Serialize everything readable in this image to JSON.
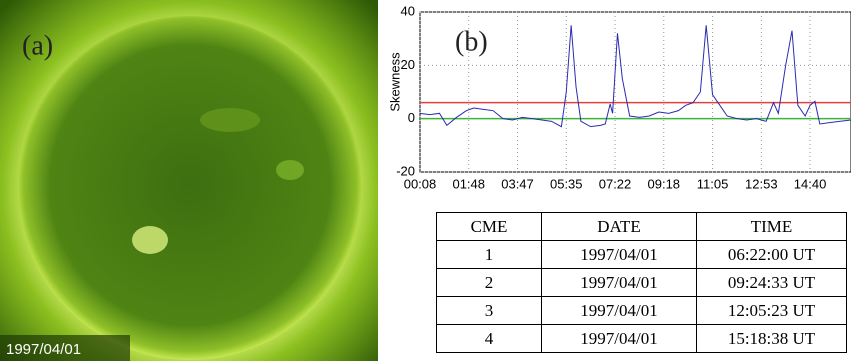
{
  "panel_a": {
    "label": "(a)",
    "caption": "1997/04/01"
  },
  "chart_data": {
    "type": "line",
    "annotation": "(b)",
    "y_label": "Skewness",
    "x": [
      0,
      0.2,
      0.4,
      0.55,
      0.75,
      0.95,
      1.1,
      1.3,
      1.5,
      1.7,
      1.9,
      2.1,
      2.3,
      2.5,
      2.7,
      2.9,
      3.0,
      3.1,
      3.2,
      3.3,
      3.5,
      3.7,
      3.8,
      3.9,
      3.95,
      4.05,
      4.15,
      4.3,
      4.5,
      4.7,
      4.9,
      5.1,
      5.3,
      5.45,
      5.6,
      5.75,
      5.87,
      6.0,
      6.15,
      6.3,
      6.5,
      6.7,
      6.9,
      7.1,
      7.25,
      7.35,
      7.5,
      7.63,
      7.75,
      7.9,
      8.0,
      8.1,
      8.2,
      8.4,
      8.6,
      8.84
    ],
    "series": [
      {
        "color": "#2b2bb0",
        "values": [
          2,
          1.5,
          2,
          -2.5,
          0.5,
          3,
          4,
          3.5,
          3,
          0,
          -0.5,
          0.5,
          0,
          -0.5,
          -1,
          -3,
          10,
          35,
          12,
          -1,
          -3,
          -2.5,
          -2,
          5.5,
          2,
          32,
          15,
          1,
          0.5,
          1,
          2.5,
          2,
          3,
          5,
          6,
          10,
          35,
          9,
          5,
          1,
          0,
          -0.5,
          0,
          -1,
          6,
          2,
          20,
          33,
          5,
          1,
          5,
          6.5,
          -2,
          -1.5,
          -1,
          -0.5
        ]
      }
    ],
    "hlines": [
      {
        "value": 6,
        "color": "#e04040"
      },
      {
        "value": 0,
        "color": "#3cb43c"
      }
    ],
    "xlim": [
      0,
      8.84
    ],
    "xticks": [
      {
        "value": 0,
        "label": "00:08"
      },
      {
        "value": 1,
        "label": "01:48"
      },
      {
        "value": 2,
        "label": "03:47"
      },
      {
        "value": 3,
        "label": "05:35"
      },
      {
        "value": 4,
        "label": "07:22"
      },
      {
        "value": 5,
        "label": "09:18"
      },
      {
        "value": 6,
        "label": "11:05"
      },
      {
        "value": 7,
        "label": "12:53"
      },
      {
        "value": 8,
        "label": "14:40"
      }
    ],
    "ylim": [
      -20,
      40
    ],
    "yticks": [
      -20,
      0,
      20,
      40
    ],
    "grid": true
  },
  "table": {
    "header": [
      "CME",
      "DATE",
      "TIME"
    ],
    "rows": [
      [
        "1",
        "1997/04/01",
        "06:22:00 UT"
      ],
      [
        "2",
        "1997/04/01",
        "09:24:33 UT"
      ],
      [
        "3",
        "1997/04/01",
        "12:05:23 UT"
      ],
      [
        "4",
        "1997/04/01",
        "15:18:38 UT"
      ]
    ]
  }
}
